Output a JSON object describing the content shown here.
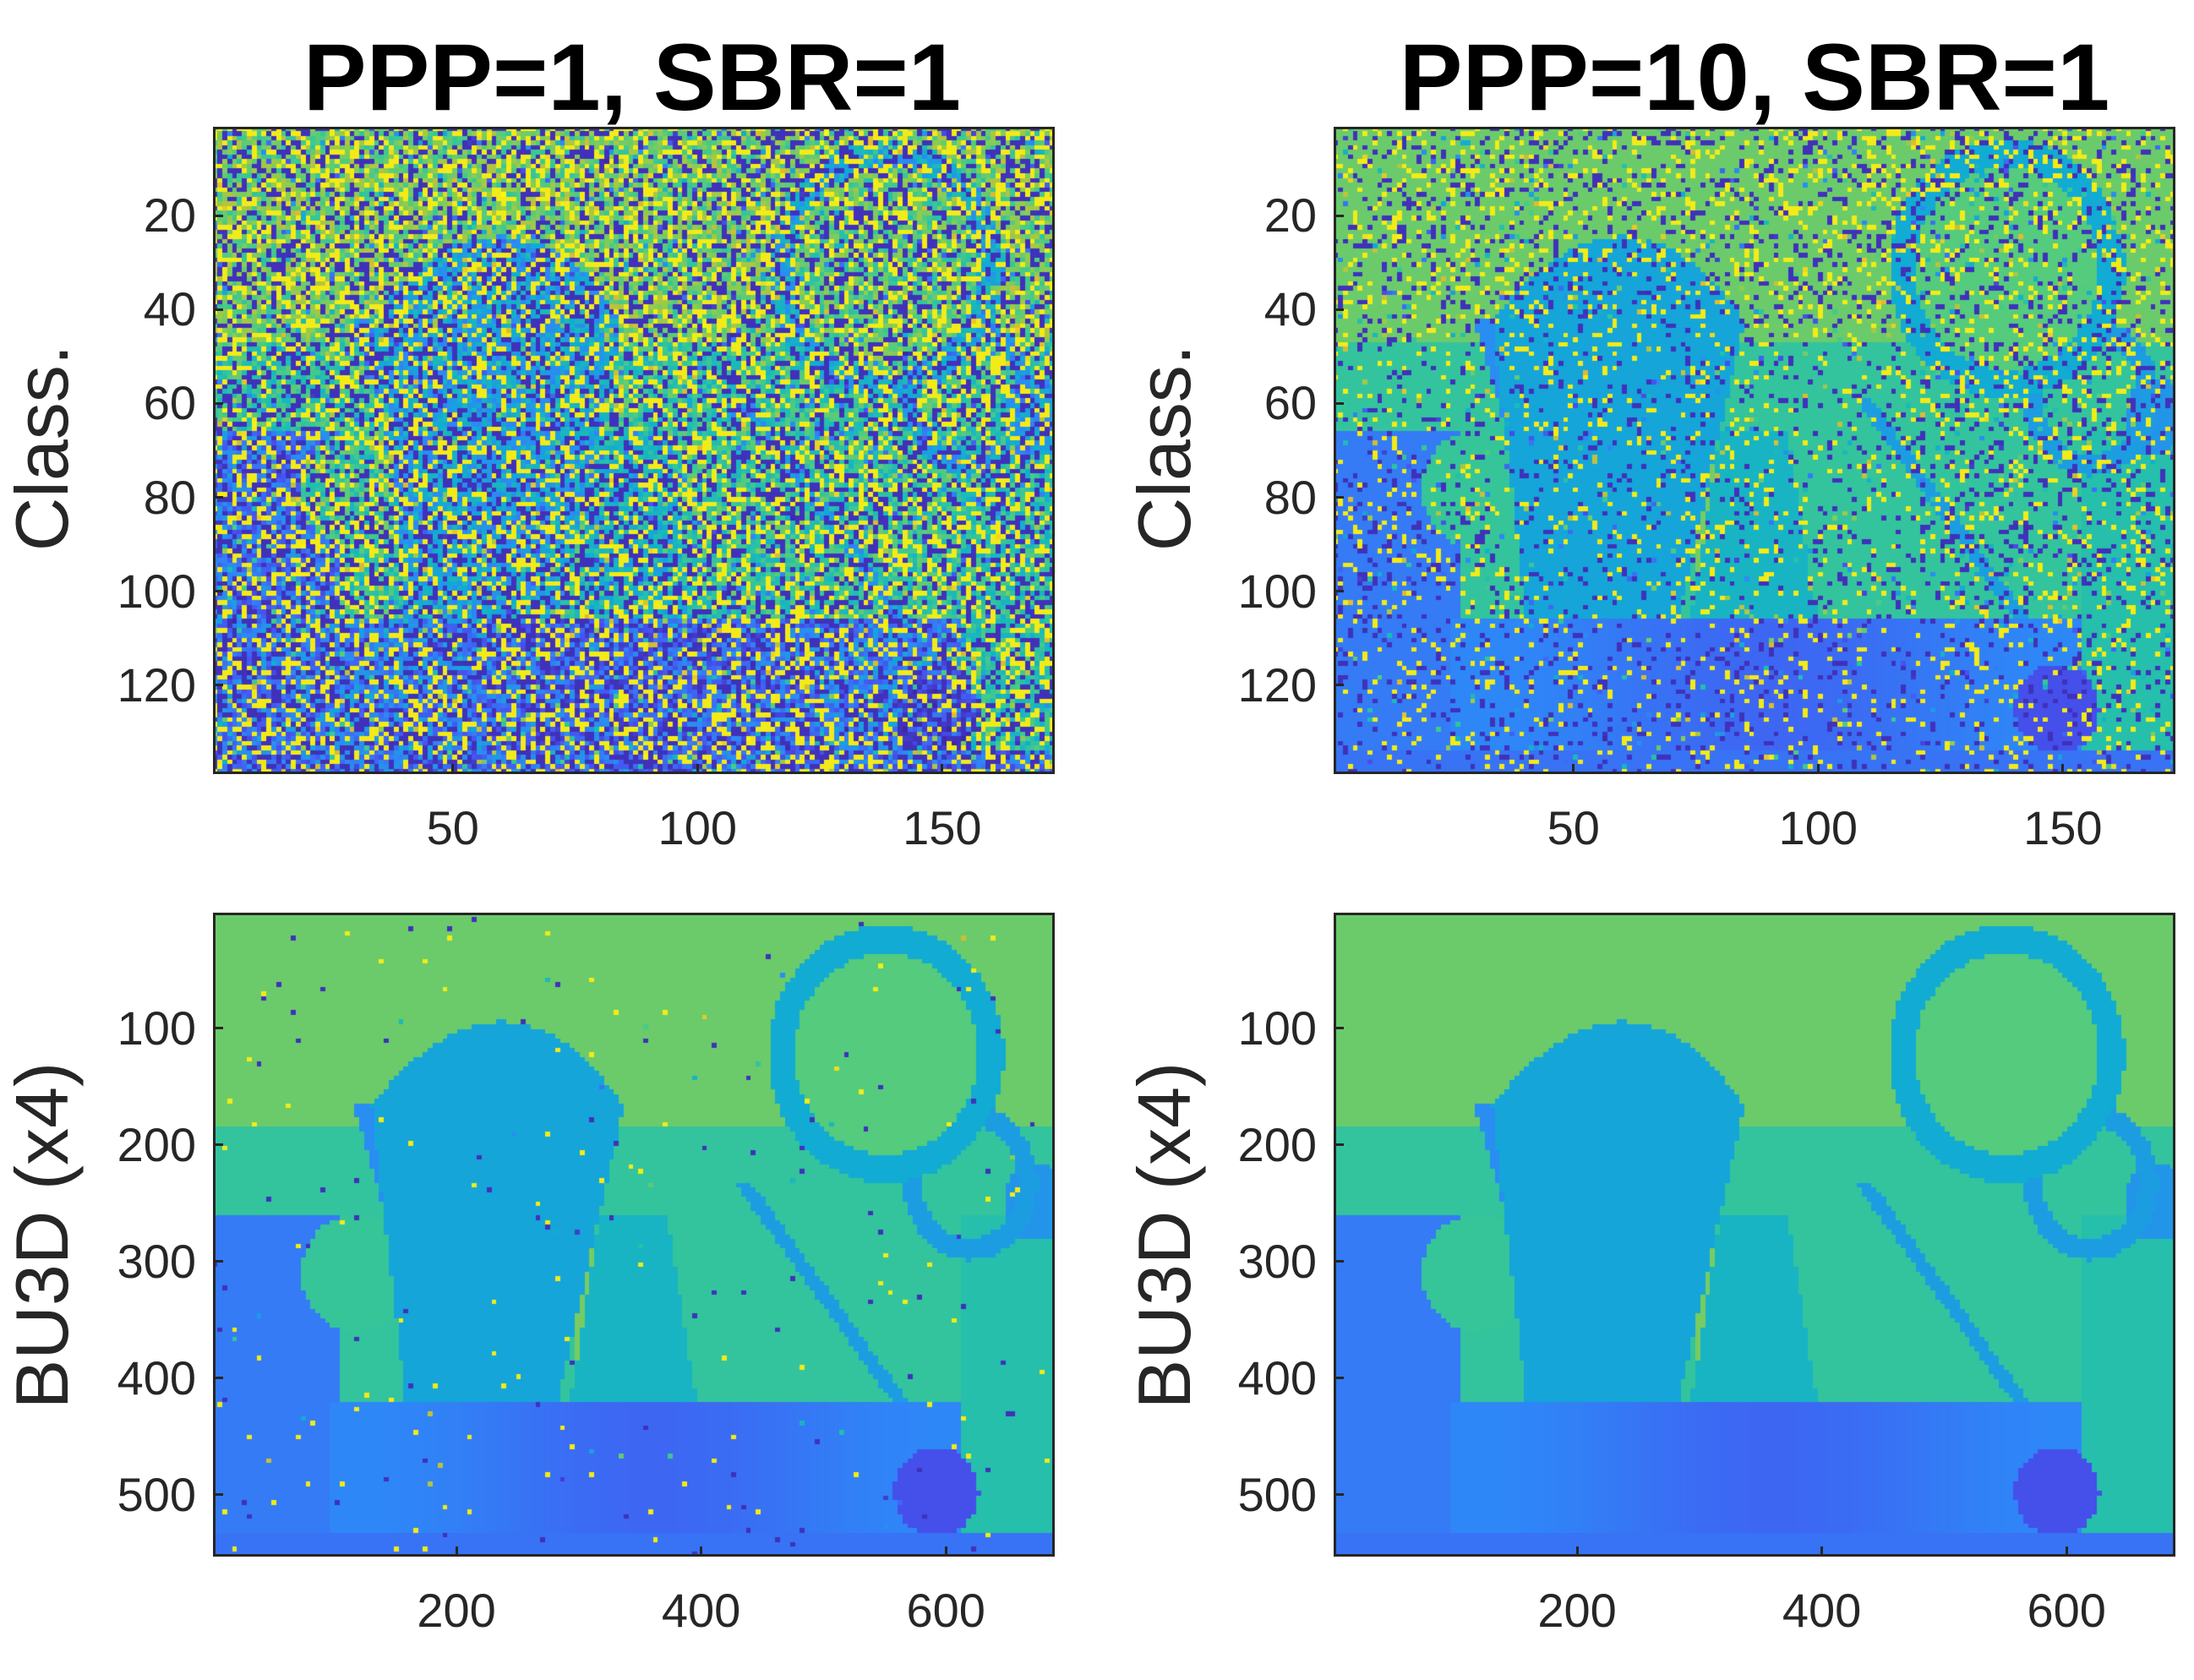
{
  "figure": {
    "columns": [
      {
        "title": "PPP=1, SBR=1"
      },
      {
        "title": "PPP=10, SBR=1"
      }
    ],
    "rows": [
      {
        "label": "Class."
      },
      {
        "label": "BU3D (x4)"
      }
    ]
  },
  "chart_data": [
    {
      "type": "heatmap",
      "row": "Class.",
      "column": "PPP=1, SBR=1",
      "colormap": "parula",
      "noise_level": 0.55,
      "xlim": [
        1,
        172
      ],
      "ylim": [
        1,
        138
      ],
      "x_ticks": [
        50,
        100,
        150
      ],
      "y_ticks": [
        20,
        40,
        60,
        80,
        100,
        120
      ],
      "x_tick_labels": [
        "50",
        "100",
        "150"
      ],
      "y_tick_labels": [
        "20",
        "40",
        "60",
        "80",
        "100",
        "120"
      ]
    },
    {
      "type": "heatmap",
      "row": "Class.",
      "column": "PPP=10, SBR=1",
      "colormap": "parula",
      "noise_level": 0.18,
      "xlim": [
        1,
        172
      ],
      "ylim": [
        1,
        138
      ],
      "x_ticks": [
        50,
        100,
        150
      ],
      "y_ticks": [
        20,
        40,
        60,
        80,
        100,
        120
      ],
      "x_tick_labels": [
        "50",
        "100",
        "150"
      ],
      "y_tick_labels": [
        "20",
        "40",
        "60",
        "80",
        "100",
        "120"
      ]
    },
    {
      "type": "heatmap",
      "row": "BU3D (x4)",
      "column": "PPP=1, SBR=1",
      "colormap": "parula",
      "noise_level": 0.01,
      "xlim": [
        1,
        688
      ],
      "ylim": [
        1,
        552
      ],
      "x_ticks": [
        200,
        400,
        600
      ],
      "y_ticks": [
        100,
        200,
        300,
        400,
        500
      ],
      "x_tick_labels": [
        "200",
        "400",
        "600"
      ],
      "y_tick_labels": [
        "100",
        "200",
        "300",
        "400",
        "500"
      ]
    },
    {
      "type": "heatmap",
      "row": "BU3D (x4)",
      "column": "PPP=10, SBR=1",
      "colormap": "parula",
      "noise_level": 0.0,
      "xlim": [
        1,
        688
      ],
      "ylim": [
        1,
        552
      ],
      "x_ticks": [
        200,
        400,
        600
      ],
      "y_ticks": [
        100,
        200,
        300,
        400,
        500
      ],
      "x_tick_labels": [
        "200",
        "400",
        "600"
      ],
      "y_tick_labels": [
        "100",
        "200",
        "300",
        "400",
        "500"
      ]
    }
  ]
}
